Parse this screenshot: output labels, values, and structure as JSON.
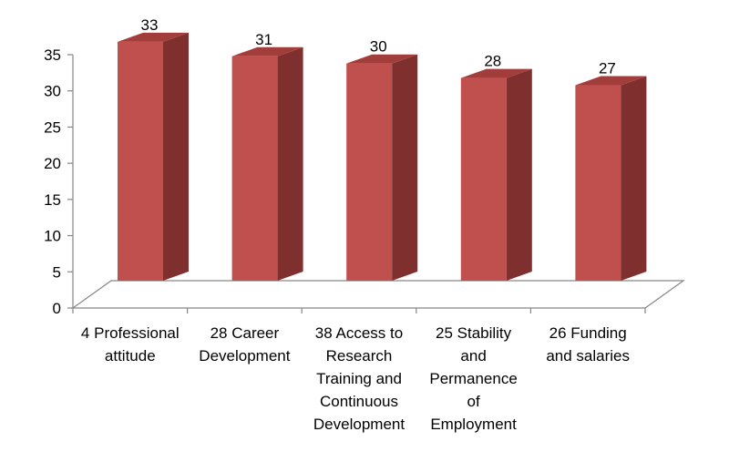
{
  "chart_data": {
    "type": "bar",
    "style": "3d-column",
    "categories": [
      "4 Professional attitude",
      "28 Career Development",
      "38 Access to Research Training and Continuous Development",
      "25 Stability and Permanence of Employment",
      "26 Funding and salaries"
    ],
    "category_lines": [
      [
        "4 Professional",
        "attitude"
      ],
      [
        "28 Career",
        "Development"
      ],
      [
        "38 Access to",
        "Research",
        "Training and",
        "Continuous",
        "Development"
      ],
      [
        "25 Stability",
        "and",
        "Permanence",
        "of",
        "Employment"
      ],
      [
        "26 Funding",
        "and salaries"
      ]
    ],
    "values": [
      33,
      31,
      30,
      28,
      27
    ],
    "data_labels": [
      "33",
      "31",
      "30",
      "28",
      "27"
    ],
    "ylim": [
      0,
      35
    ],
    "yticks": [
      "0",
      "5",
      "10",
      "15",
      "20",
      "25",
      "30",
      "35"
    ],
    "title": "",
    "xlabel": "",
    "ylabel": "",
    "legend": "none",
    "grid": false,
    "colors": {
      "bar_front": "#C0504D",
      "bar_side": "#7F2F2E",
      "bar_top": "#A13E3B",
      "axis": "#868686"
    }
  }
}
